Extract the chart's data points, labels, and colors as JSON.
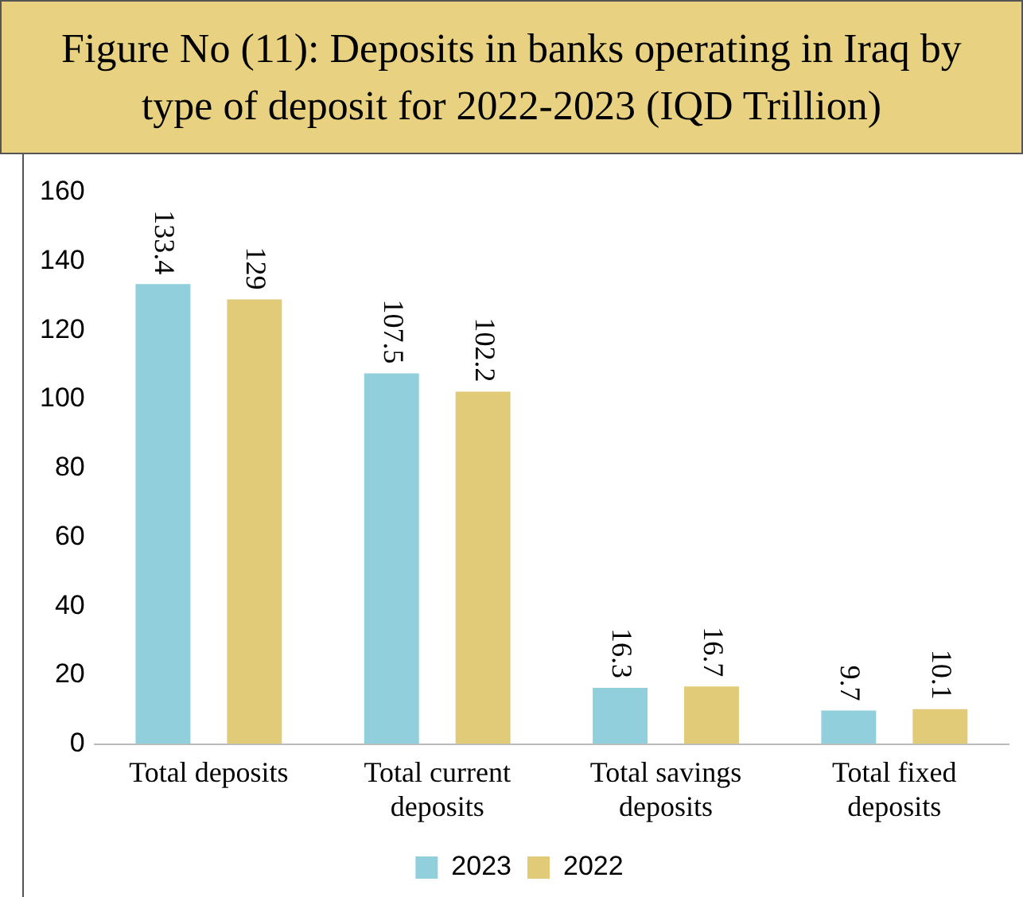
{
  "chart_data": {
    "type": "bar",
    "title": "Figure No (11): Deposits in banks operating in Iraq by type of deposit for 2022-2023 (IQD Trillion)",
    "categories": [
      "Total deposits",
      "Total current deposits",
      "Total savings deposits",
      "Total fixed deposits"
    ],
    "series": [
      {
        "name": "2023",
        "color": "#92cfdc",
        "values": [
          133.4,
          107.5,
          16.3,
          9.7
        ]
      },
      {
        "name": "2022",
        "color": "#e2cb78",
        "values": [
          129,
          102.2,
          16.7,
          10.1
        ]
      }
    ],
    "ylim": [
      0,
      160
    ],
    "yticks": [
      0,
      20,
      40,
      60,
      80,
      100,
      120,
      140,
      160
    ],
    "grid": false,
    "legend": "bottom",
    "data_labels": true
  }
}
